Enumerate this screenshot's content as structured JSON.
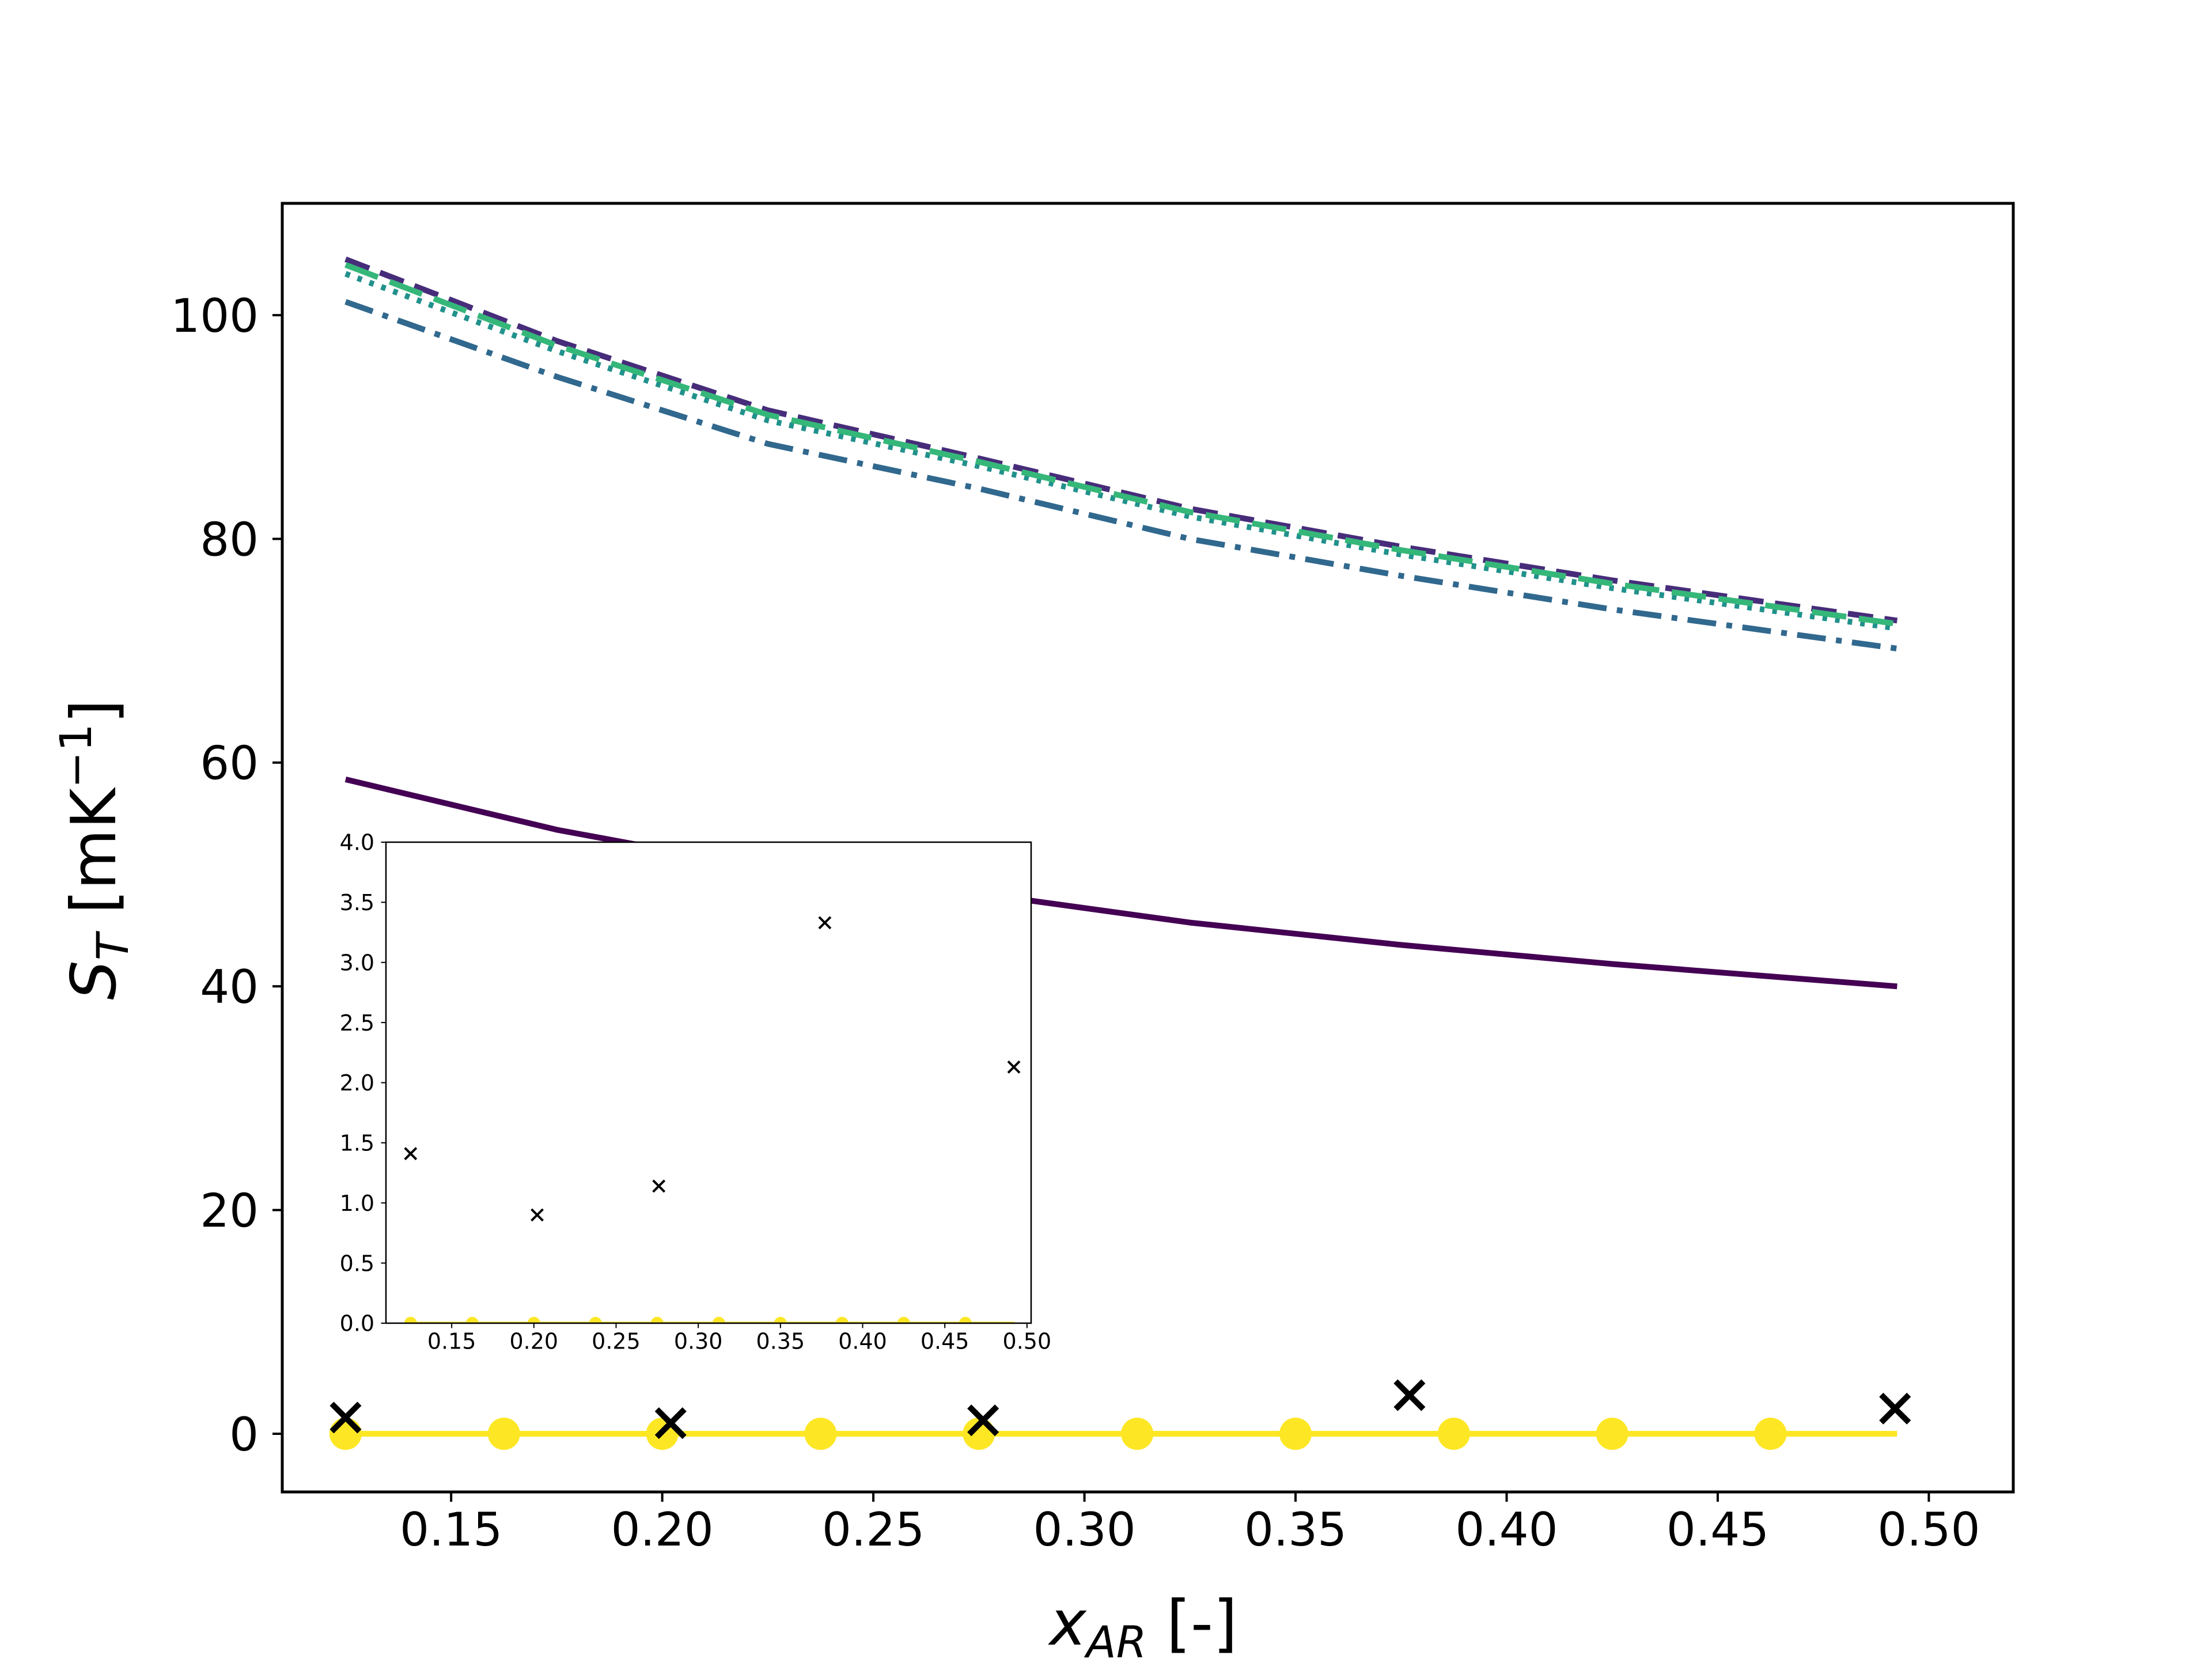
{
  "chart_data": [
    {
      "type": "line",
      "title": "",
      "xlabel": "x_AR [-]",
      "xlabel_parts": {
        "main": "x",
        "sub": "AR",
        "unit": " [-]"
      },
      "ylabel": "S_T [mK^-1]",
      "ylabel_parts": {
        "main": "S",
        "sub": "T",
        "unit_open": " [mK",
        "sup": "−1",
        "unit_close": "]"
      },
      "xlim": [
        0.11,
        0.52
      ],
      "ylim": [
        -5.2,
        110
      ],
      "xticks": [
        0.15,
        0.2,
        0.25,
        0.3,
        0.35,
        0.4,
        0.45,
        0.5
      ],
      "xtick_labels": [
        "0.15",
        "0.20",
        "0.25",
        "0.30",
        "0.35",
        "0.40",
        "0.45",
        "0.50"
      ],
      "yticks": [
        0,
        20,
        40,
        60,
        80,
        100
      ],
      "ytick_labels": [
        "0",
        "20",
        "40",
        "60",
        "80",
        "100"
      ],
      "grid": false,
      "legend": null,
      "series": [
        {
          "style": "solid",
          "color": "#440154",
          "x": [
            0.125,
            0.175,
            0.225,
            0.275,
            0.325,
            0.375,
            0.425,
            0.4925
          ],
          "y": [
            58.5,
            54.0,
            50.5,
            48.3,
            45.7,
            43.7,
            42.0,
            40.0
          ]
        },
        {
          "style": "dashed",
          "color": "#472c7a",
          "x": [
            0.125,
            0.175,
            0.225,
            0.275,
            0.325,
            0.375,
            0.425,
            0.4925
          ],
          "y": [
            105.0,
            97.7,
            91.5,
            87.2,
            82.7,
            79.3,
            76.3,
            72.7
          ]
        },
        {
          "style": "dashdot",
          "color": "#31688e",
          "x": [
            0.125,
            0.175,
            0.225,
            0.275,
            0.325,
            0.375,
            0.425,
            0.4925
          ],
          "y": [
            101.2,
            94.5,
            88.5,
            84.5,
            80.0,
            76.7,
            73.7,
            70.2
          ]
        },
        {
          "style": "dotted",
          "color": "#21918c",
          "x": [
            0.125,
            0.175,
            0.225,
            0.275,
            0.325,
            0.375,
            0.425,
            0.4925
          ],
          "y": [
            103.7,
            96.8,
            90.6,
            86.5,
            82.0,
            78.6,
            75.6,
            72.0
          ]
        },
        {
          "style": "dashed-long",
          "color": "#35b779",
          "x": [
            0.125,
            0.175,
            0.225,
            0.275,
            0.325,
            0.375,
            0.425,
            0.4925
          ],
          "y": [
            104.5,
            97.3,
            91.1,
            86.9,
            82.4,
            79.0,
            76.0,
            72.4
          ]
        },
        {
          "style": "solid-markers",
          "color": "#fde725",
          "x": [
            0.125,
            0.1625,
            0.2,
            0.2375,
            0.275,
            0.3125,
            0.35,
            0.3875,
            0.425,
            0.4625,
            0.4925
          ],
          "y": [
            0,
            0,
            0,
            0,
            0,
            0,
            0,
            0,
            0,
            0,
            0
          ],
          "marker_x": [
            0.125,
            0.1625,
            0.2,
            0.2375,
            0.275,
            0.3125,
            0.35,
            0.3875,
            0.425,
            0.4625
          ]
        },
        {
          "style": "x-markers",
          "color": "#000000",
          "x": [
            0.125,
            0.202,
            0.276,
            0.377,
            0.492
          ],
          "y": [
            1.45,
            0.95,
            1.2,
            3.45,
            2.25
          ]
        }
      ]
    },
    {
      "type": "scatter",
      "title": "",
      "inset": true,
      "xlim": [
        0.11,
        0.5025
      ],
      "ylim": [
        0,
        4.0
      ],
      "xticks": [
        0.15,
        0.2,
        0.25,
        0.3,
        0.35,
        0.4,
        0.45,
        0.5
      ],
      "xtick_labels": [
        "0.15",
        "0.20",
        "0.25",
        "0.30",
        "0.35",
        "0.40",
        "0.45",
        "0.50"
      ],
      "yticks": [
        0,
        0.5,
        1.0,
        1.5,
        2.0,
        2.5,
        3.0,
        3.5,
        4.0
      ],
      "ytick_labels": [
        "0.0",
        "0.5",
        "1.0",
        "1.5",
        "2.0",
        "2.5",
        "3.0",
        "3.5",
        "4.0"
      ],
      "grid": false,
      "legend": null,
      "series": [
        {
          "style": "x-markers",
          "color": "#000000",
          "x": [
            0.125,
            0.202,
            0.276,
            0.377,
            0.492
          ],
          "y": [
            1.41,
            0.9,
            1.14,
            3.33,
            2.13
          ]
        },
        {
          "style": "solid-markers",
          "color": "#fde725",
          "x": [
            0.125,
            0.1625,
            0.2,
            0.2375,
            0.275,
            0.3125,
            0.35,
            0.3875,
            0.425,
            0.4625,
            0.4925
          ],
          "y": [
            0,
            0,
            0,
            0,
            0,
            0,
            0,
            0,
            0,
            0,
            0
          ],
          "marker_x": [
            0.125,
            0.1625,
            0.2,
            0.2375,
            0.275,
            0.3125,
            0.35,
            0.3875,
            0.425,
            0.4625
          ]
        }
      ]
    }
  ]
}
